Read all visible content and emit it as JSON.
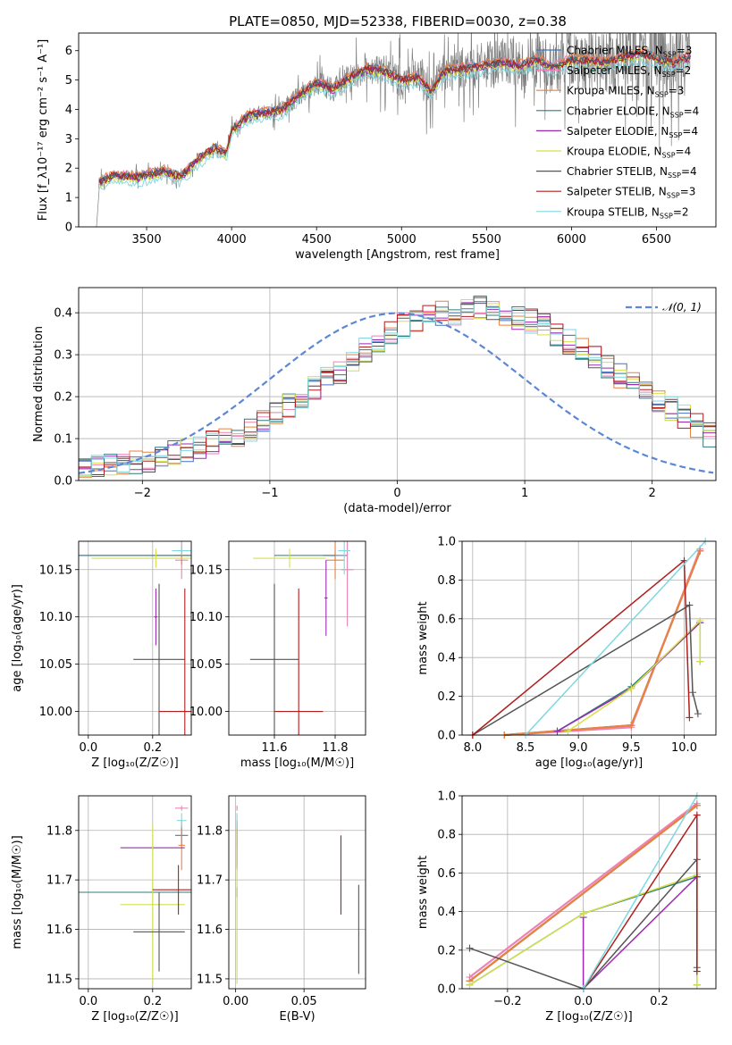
{
  "figure": {
    "title": "PLATE=0850, MJD=52338, FIBERID=0030, z=0.38"
  },
  "colors": {
    "Chabrier MILES": "#4472c4",
    "Salpeter MILES": "#ee82b4",
    "Kroupa MILES": "#e8823c",
    "Chabrier ELODIE": "#2e7d7a",
    "Salpeter ELODIE": "#9b2ab0",
    "Kroupa ELODIE": "#d4e04a",
    "Chabrier STELIB": "#555555",
    "Salpeter STELIB": "#b01e1e",
    "Kroupa STELIB": "#7fd7e0",
    "data": "#808080",
    "gaussian": "#5b87d6",
    "grid": "#b0b0b0"
  },
  "legend_top": [
    {
      "label": "Chabrier MILES, N",
      "sub": "SSP",
      "n": "=3",
      "key": "Chabrier MILES"
    },
    {
      "label": "Salpeter MILES, N",
      "sub": "SSP",
      "n": "=2",
      "key": "Salpeter MILES"
    },
    {
      "label": "Kroupa MILES, N",
      "sub": "SSP",
      "n": "=3",
      "key": "Kroupa MILES"
    },
    {
      "label": "Chabrier ELODIE, N",
      "sub": "SSP",
      "n": "=4",
      "key": "Chabrier ELODIE"
    },
    {
      "label": "Salpeter ELODIE, N",
      "sub": "SSP",
      "n": "=4",
      "key": "Salpeter ELODIE"
    },
    {
      "label": "Kroupa ELODIE, N",
      "sub": "SSP",
      "n": "=4",
      "key": "Kroupa ELODIE"
    },
    {
      "label": "Chabrier STELIB, N",
      "sub": "SSP",
      "n": "=4",
      "key": "Chabrier STELIB"
    },
    {
      "label": "Salpeter STELIB, N",
      "sub": "SSP",
      "n": "=3",
      "key": "Salpeter STELIB"
    },
    {
      "label": "Kroupa STELIB, N",
      "sub": "SSP",
      "n": "=2",
      "key": "Kroupa STELIB"
    }
  ],
  "legend_hist": {
    "label": "𝒩(0, 1)"
  },
  "chart_data": [
    {
      "id": "spectrum",
      "type": "line",
      "xlabel": "wavelength [Angstrom, rest frame]",
      "ylabel": "Flux [f_λ10⁻¹⁷ erg cm⁻² s⁻¹ A⁻¹]",
      "xlim": [
        3100,
        6850
      ],
      "ylim": [
        0,
        6.6
      ],
      "xticks": [
        3500,
        4000,
        4500,
        5000,
        5500,
        6000,
        6500
      ],
      "yticks": [
        0,
        1,
        2,
        3,
        4,
        5,
        6
      ],
      "model_knots": [
        [
          3220,
          1.5
        ],
        [
          3300,
          1.75
        ],
        [
          3450,
          1.7
        ],
        [
          3600,
          1.9
        ],
        [
          3700,
          1.7
        ],
        [
          3800,
          2.3
        ],
        [
          3900,
          2.7
        ],
        [
          3970,
          2.5
        ],
        [
          4000,
          3.3
        ],
        [
          4100,
          3.8
        ],
        [
          4200,
          3.9
        ],
        [
          4300,
          4.0
        ],
        [
          4400,
          4.5
        ],
        [
          4500,
          4.9
        ],
        [
          4600,
          4.7
        ],
        [
          4700,
          5.1
        ],
        [
          4800,
          5.4
        ],
        [
          4900,
          5.3
        ],
        [
          5000,
          5.0
        ],
        [
          5100,
          5.1
        ],
        [
          5175,
          4.6
        ],
        [
          5250,
          5.3
        ],
        [
          5400,
          5.4
        ],
        [
          5500,
          5.5
        ],
        [
          5600,
          5.6
        ],
        [
          5700,
          5.5
        ],
        [
          5800,
          5.7
        ],
        [
          5890,
          5.4
        ],
        [
          6000,
          5.7
        ],
        [
          6200,
          5.6
        ],
        [
          6400,
          5.9
        ],
        [
          6600,
          5.6
        ],
        [
          6700,
          5.8
        ]
      ],
      "series_offsets": {
        "Chabrier MILES": 0.05,
        "Salpeter MILES": 0.08,
        "Kroupa MILES": 0.1,
        "Chabrier ELODIE": 0.0,
        "Salpeter ELODIE": -0.05,
        "Kroupa ELODIE": -0.1,
        "Chabrier STELIB": 0.02,
        "Salpeter STELIB": 0.0,
        "Kroupa STELIB": -0.25
      }
    },
    {
      "id": "residual-histogram",
      "type": "bar",
      "xlabel": "(data-model)/error",
      "ylabel": "Normed distribution",
      "xlim": [
        -2.5,
        2.5
      ],
      "ylim": [
        0,
        0.46
      ],
      "xticks": [
        -2,
        -1,
        0,
        1,
        2
      ],
      "yticks": [
        0.0,
        0.1,
        0.2,
        0.3,
        0.4
      ],
      "bin_width": 0.1,
      "bin_start": -2.5,
      "base_hist": [
        0.03,
        0.035,
        0.04,
        0.04,
        0.045,
        0.05,
        0.06,
        0.065,
        0.07,
        0.08,
        0.09,
        0.1,
        0.11,
        0.12,
        0.14,
        0.16,
        0.18,
        0.2,
        0.22,
        0.24,
        0.26,
        0.29,
        0.31,
        0.33,
        0.35,
        0.37,
        0.38,
        0.39,
        0.4,
        0.4,
        0.41,
        0.41,
        0.4,
        0.4,
        0.39,
        0.38,
        0.37,
        0.35,
        0.33,
        0.31,
        0.29,
        0.27,
        0.25,
        0.23,
        0.21,
        0.19,
        0.17,
        0.15,
        0.13,
        0.11
      ]
    },
    {
      "id": "age-vs-Z",
      "type": "scatter",
      "xlabel": "Z [log₁₀(Z/Z☉)]",
      "ylabel": "age [log₁₀(age/yr)]",
      "xlim": [
        -0.03,
        0.32
      ],
      "ylim": [
        9.975,
        10.18
      ],
      "xticks": [
        0.0,
        0.2
      ],
      "yticks": [
        10.0,
        10.05,
        10.1,
        10.15
      ],
      "points": [
        {
          "key": "Chabrier MILES",
          "x": 0.21,
          "y": 10.165,
          "xerr": 0.26,
          "yerr": 0.0
        },
        {
          "key": "Salpeter MILES",
          "x": 0.29,
          "y": 10.16,
          "xerr": 0.02,
          "yerr": 0.02
        },
        {
          "key": "Kroupa MILES",
          "x": 0.29,
          "y": 10.165,
          "xerr": 0.02,
          "yerr": 0.01
        },
        {
          "key": "Chabrier ELODIE",
          "x": 0.2,
          "y": 10.165,
          "xerr": 0.28,
          "yerr": 0.0
        },
        {
          "key": "Salpeter ELODIE",
          "x": 0.21,
          "y": 10.1,
          "xerr": 0.005,
          "yerr": 0.03
        },
        {
          "key": "Kroupa ELODIE",
          "x": 0.21,
          "y": 10.162,
          "xerr": 0.2,
          "yerr": 0.01
        },
        {
          "key": "Chabrier STELIB",
          "x": 0.22,
          "y": 10.055,
          "xerr": 0.08,
          "yerr": 0.08
        },
        {
          "key": "Salpeter STELIB",
          "x": 0.3,
          "y": 10.0,
          "xerr": 0.08,
          "yerr": 0.13
        },
        {
          "key": "Kroupa STELIB",
          "x": 0.29,
          "y": 10.17,
          "xerr": 0.03,
          "yerr": 0.005
        }
      ]
    },
    {
      "id": "age-vs-mass",
      "type": "scatter",
      "xlabel": "mass [log₁₀(M/M☉)]",
      "ylabel": "",
      "xlim": [
        11.45,
        11.9
      ],
      "ylim": [
        9.975,
        10.18
      ],
      "xticks": [
        11.6,
        11.8
      ],
      "yticks": [
        10.0,
        10.05,
        10.1,
        10.15
      ],
      "points": [
        {
          "key": "Chabrier MILES",
          "x": 11.8,
          "y": 10.165,
          "xerr": 0.04,
          "yerr": 0.005
        },
        {
          "key": "Salpeter MILES",
          "x": 11.84,
          "y": 10.15,
          "xerr": 0.02,
          "yerr": 0.06
        },
        {
          "key": "Kroupa MILES",
          "x": 11.8,
          "y": 10.16,
          "xerr": 0.03,
          "yerr": 0.02
        },
        {
          "key": "Chabrier ELODIE",
          "x": 11.7,
          "y": 10.165,
          "xerr": 0.1,
          "yerr": 0.0
        },
        {
          "key": "Salpeter ELODIE",
          "x": 11.77,
          "y": 10.12,
          "xerr": 0.005,
          "yerr": 0.04
        },
        {
          "key": "Kroupa ELODIE",
          "x": 11.65,
          "y": 10.162,
          "xerr": 0.12,
          "yerr": 0.01
        },
        {
          "key": "Chabrier STELIB",
          "x": 11.6,
          "y": 10.055,
          "xerr": 0.08,
          "yerr": 0.08
        },
        {
          "key": "Salpeter STELIB",
          "x": 11.68,
          "y": 10.0,
          "xerr": 0.08,
          "yerr": 0.13
        },
        {
          "key": "Kroupa STELIB",
          "x": 11.83,
          "y": 10.17,
          "xerr": 0.02,
          "yerr": 0.025
        }
      ]
    },
    {
      "id": "weight-vs-age",
      "type": "line",
      "xlabel": "age [log₁₀(age/yr)]",
      "ylabel": "mass weight",
      "xlim": [
        7.9,
        10.3
      ],
      "ylim": [
        0,
        1
      ],
      "xticks": [
        8.0,
        8.5,
        9.0,
        9.5,
        10.0
      ],
      "yticks": [
        0.0,
        0.2,
        0.4,
        0.6,
        0.8,
        1.0
      ],
      "series": [
        {
          "key": "Chabrier MILES",
          "x": [
            8.3,
            9.5,
            10.15
          ],
          "y": [
            0.0,
            0.05,
            0.95
          ]
        },
        {
          "key": "Salpeter MILES",
          "x": [
            8.3,
            9.5,
            10.15
          ],
          "y": [
            0.0,
            0.04,
            0.96
          ]
        },
        {
          "key": "Kroupa MILES",
          "x": [
            8.3,
            9.5,
            10.15
          ],
          "y": [
            0.0,
            0.05,
            0.95
          ]
        },
        {
          "key": "Chabrier ELODIE",
          "x": [
            8.8,
            9.5,
            10.15,
            10.15
          ],
          "y": [
            0.02,
            0.25,
            0.58,
            0.38
          ]
        },
        {
          "key": "Salpeter ELODIE",
          "x": [
            8.8,
            9.5,
            10.15
          ],
          "y": [
            0.02,
            0.24,
            0.58
          ]
        },
        {
          "key": "Kroupa ELODIE",
          "x": [
            8.9,
            9.5,
            10.15,
            10.15
          ],
          "y": [
            0.02,
            0.24,
            0.59,
            0.38
          ]
        },
        {
          "key": "Chabrier STELIB",
          "x": [
            8.0,
            10.05,
            10.08,
            10.13
          ],
          "y": [
            0.0,
            0.67,
            0.22,
            0.11
          ]
        },
        {
          "key": "Salpeter STELIB",
          "x": [
            8.0,
            10.0,
            10.05
          ],
          "y": [
            0.0,
            0.9,
            0.09
          ]
        },
        {
          "key": "Kroupa STELIB",
          "x": [
            8.5,
            10.2
          ],
          "y": [
            0.0,
            1.0
          ]
        }
      ]
    },
    {
      "id": "mass-vs-Z",
      "type": "scatter",
      "xlabel": "Z [log₁₀(Z/Z☉)]",
      "ylabel": "mass [log₁₀(M/M☉)]",
      "xlim": [
        -0.03,
        0.32
      ],
      "ylim": [
        11.48,
        11.87
      ],
      "xticks": [
        0.0,
        0.2
      ],
      "yticks": [
        11.5,
        11.6,
        11.7,
        11.8
      ],
      "points": [
        {
          "key": "Chabrier MILES",
          "x": 0.29,
          "y": 11.79,
          "xerr": 0.02,
          "yerr": 0.02
        },
        {
          "key": "Salpeter MILES",
          "x": 0.29,
          "y": 11.845,
          "xerr": 0.02,
          "yerr": 0.005
        },
        {
          "key": "Kroupa MILES",
          "x": 0.29,
          "y": 11.77,
          "xerr": 0.01,
          "yerr": 0.05
        },
        {
          "key": "Chabrier ELODIE",
          "x": 0.2,
          "y": 11.675,
          "xerr": 0.28,
          "yerr": 0.0
        },
        {
          "key": "Salpeter ELODIE",
          "x": 0.2,
          "y": 11.765,
          "xerr": 0.1,
          "yerr": 0.0
        },
        {
          "key": "Kroupa ELODIE",
          "x": 0.2,
          "y": 11.65,
          "xerr": 0.1,
          "yerr": 0.16
        },
        {
          "key": "Chabrier STELIB",
          "x": 0.22,
          "y": 11.595,
          "xerr": 0.08,
          "yerr": 0.08
        },
        {
          "key": "Salpeter STELIB",
          "x": 0.28,
          "y": 11.68,
          "xerr": 0.08,
          "yerr": 0.05
        },
        {
          "key": "Kroupa STELIB",
          "x": 0.29,
          "y": 11.82,
          "xerr": 0.015,
          "yerr": 0.015
        }
      ]
    },
    {
      "id": "mass-vs-ebv",
      "type": "scatter",
      "xlabel": "E(B-V)",
      "ylabel": "",
      "xlim": [
        -0.005,
        0.095
      ],
      "ylim": [
        11.48,
        11.87
      ],
      "xticks": [
        0.0,
        0.05
      ],
      "yticks": [
        11.5,
        11.6,
        11.7,
        11.8
      ],
      "points": [
        {
          "key": "Chabrier MILES",
          "x": 0.001,
          "y": 11.79,
          "xerr": 0,
          "yerr": 0.02
        },
        {
          "key": "Salpeter MILES",
          "x": 0.001,
          "y": 11.845,
          "xerr": 0,
          "yerr": 0.005
        },
        {
          "key": "Kroupa MILES",
          "x": 0.001,
          "y": 11.77,
          "xerr": 0,
          "yerr": 0.05
        },
        {
          "key": "Chabrier ELODIE",
          "x": 0.001,
          "y": 11.675,
          "xerr": 0,
          "yerr": 0.01
        },
        {
          "key": "Salpeter ELODIE",
          "x": 0.001,
          "y": 11.765,
          "xerr": 0,
          "yerr": 0.04
        },
        {
          "key": "Kroupa ELODIE",
          "x": 0.001,
          "y": 11.65,
          "xerr": 0,
          "yerr": 0.16
        },
        {
          "key": "Chabrier STELIB",
          "x": 0.09,
          "y": 11.6,
          "xerr": 0,
          "yerr": 0.09
        },
        {
          "key": "Salpeter STELIB",
          "x": 0.077,
          "y": 11.71,
          "xerr": 0,
          "yerr": 0.08
        },
        {
          "key": "Kroupa STELIB",
          "x": 0.001,
          "y": 11.82,
          "xerr": 0,
          "yerr": 0.015
        }
      ]
    },
    {
      "id": "weight-vs-Z",
      "type": "line",
      "xlabel": "Z [log₁₀(Z/Z☉)]",
      "ylabel": "mass weight",
      "xlim": [
        -0.32,
        0.35
      ],
      "ylim": [
        0,
        1
      ],
      "xticks": [
        -0.2,
        0.0,
        0.2
      ],
      "yticks": [
        0.0,
        0.2,
        0.4,
        0.6,
        0.8,
        1.0
      ],
      "series": [
        {
          "key": "Chabrier MILES",
          "x": [
            -0.3,
            0.3
          ],
          "y": [
            0.04,
            0.95
          ]
        },
        {
          "key": "Salpeter MILES",
          "x": [
            -0.3,
            0.3
          ],
          "y": [
            0.06,
            0.96
          ]
        },
        {
          "key": "Kroupa MILES",
          "x": [
            -0.3,
            0.3
          ],
          "y": [
            0.04,
            0.95
          ]
        },
        {
          "key": "Chabrier ELODIE",
          "x": [
            -0.3,
            0.0,
            0.3,
            0.3
          ],
          "y": [
            0.02,
            0.39,
            0.58,
            0.02
          ]
        },
        {
          "key": "Salpeter ELODIE",
          "x": [
            0.0,
            0.0,
            0.3
          ],
          "y": [
            0.37,
            0.0,
            0.58
          ]
        },
        {
          "key": "Kroupa ELODIE",
          "x": [
            -0.3,
            0.0,
            0.3,
            0.3
          ],
          "y": [
            0.02,
            0.39,
            0.59,
            0.02
          ]
        },
        {
          "key": "Chabrier STELIB",
          "x": [
            -0.3,
            0.0,
            0.3,
            0.3
          ],
          "y": [
            0.21,
            0.0,
            0.67,
            0.11
          ]
        },
        {
          "key": "Salpeter STELIB",
          "x": [
            0.0,
            0.3,
            0.3
          ],
          "y": [
            0.0,
            0.9,
            0.09
          ]
        },
        {
          "key": "Kroupa STELIB",
          "x": [
            0.0,
            0.3
          ],
          "y": [
            0.0,
            1.0
          ]
        }
      ]
    }
  ]
}
